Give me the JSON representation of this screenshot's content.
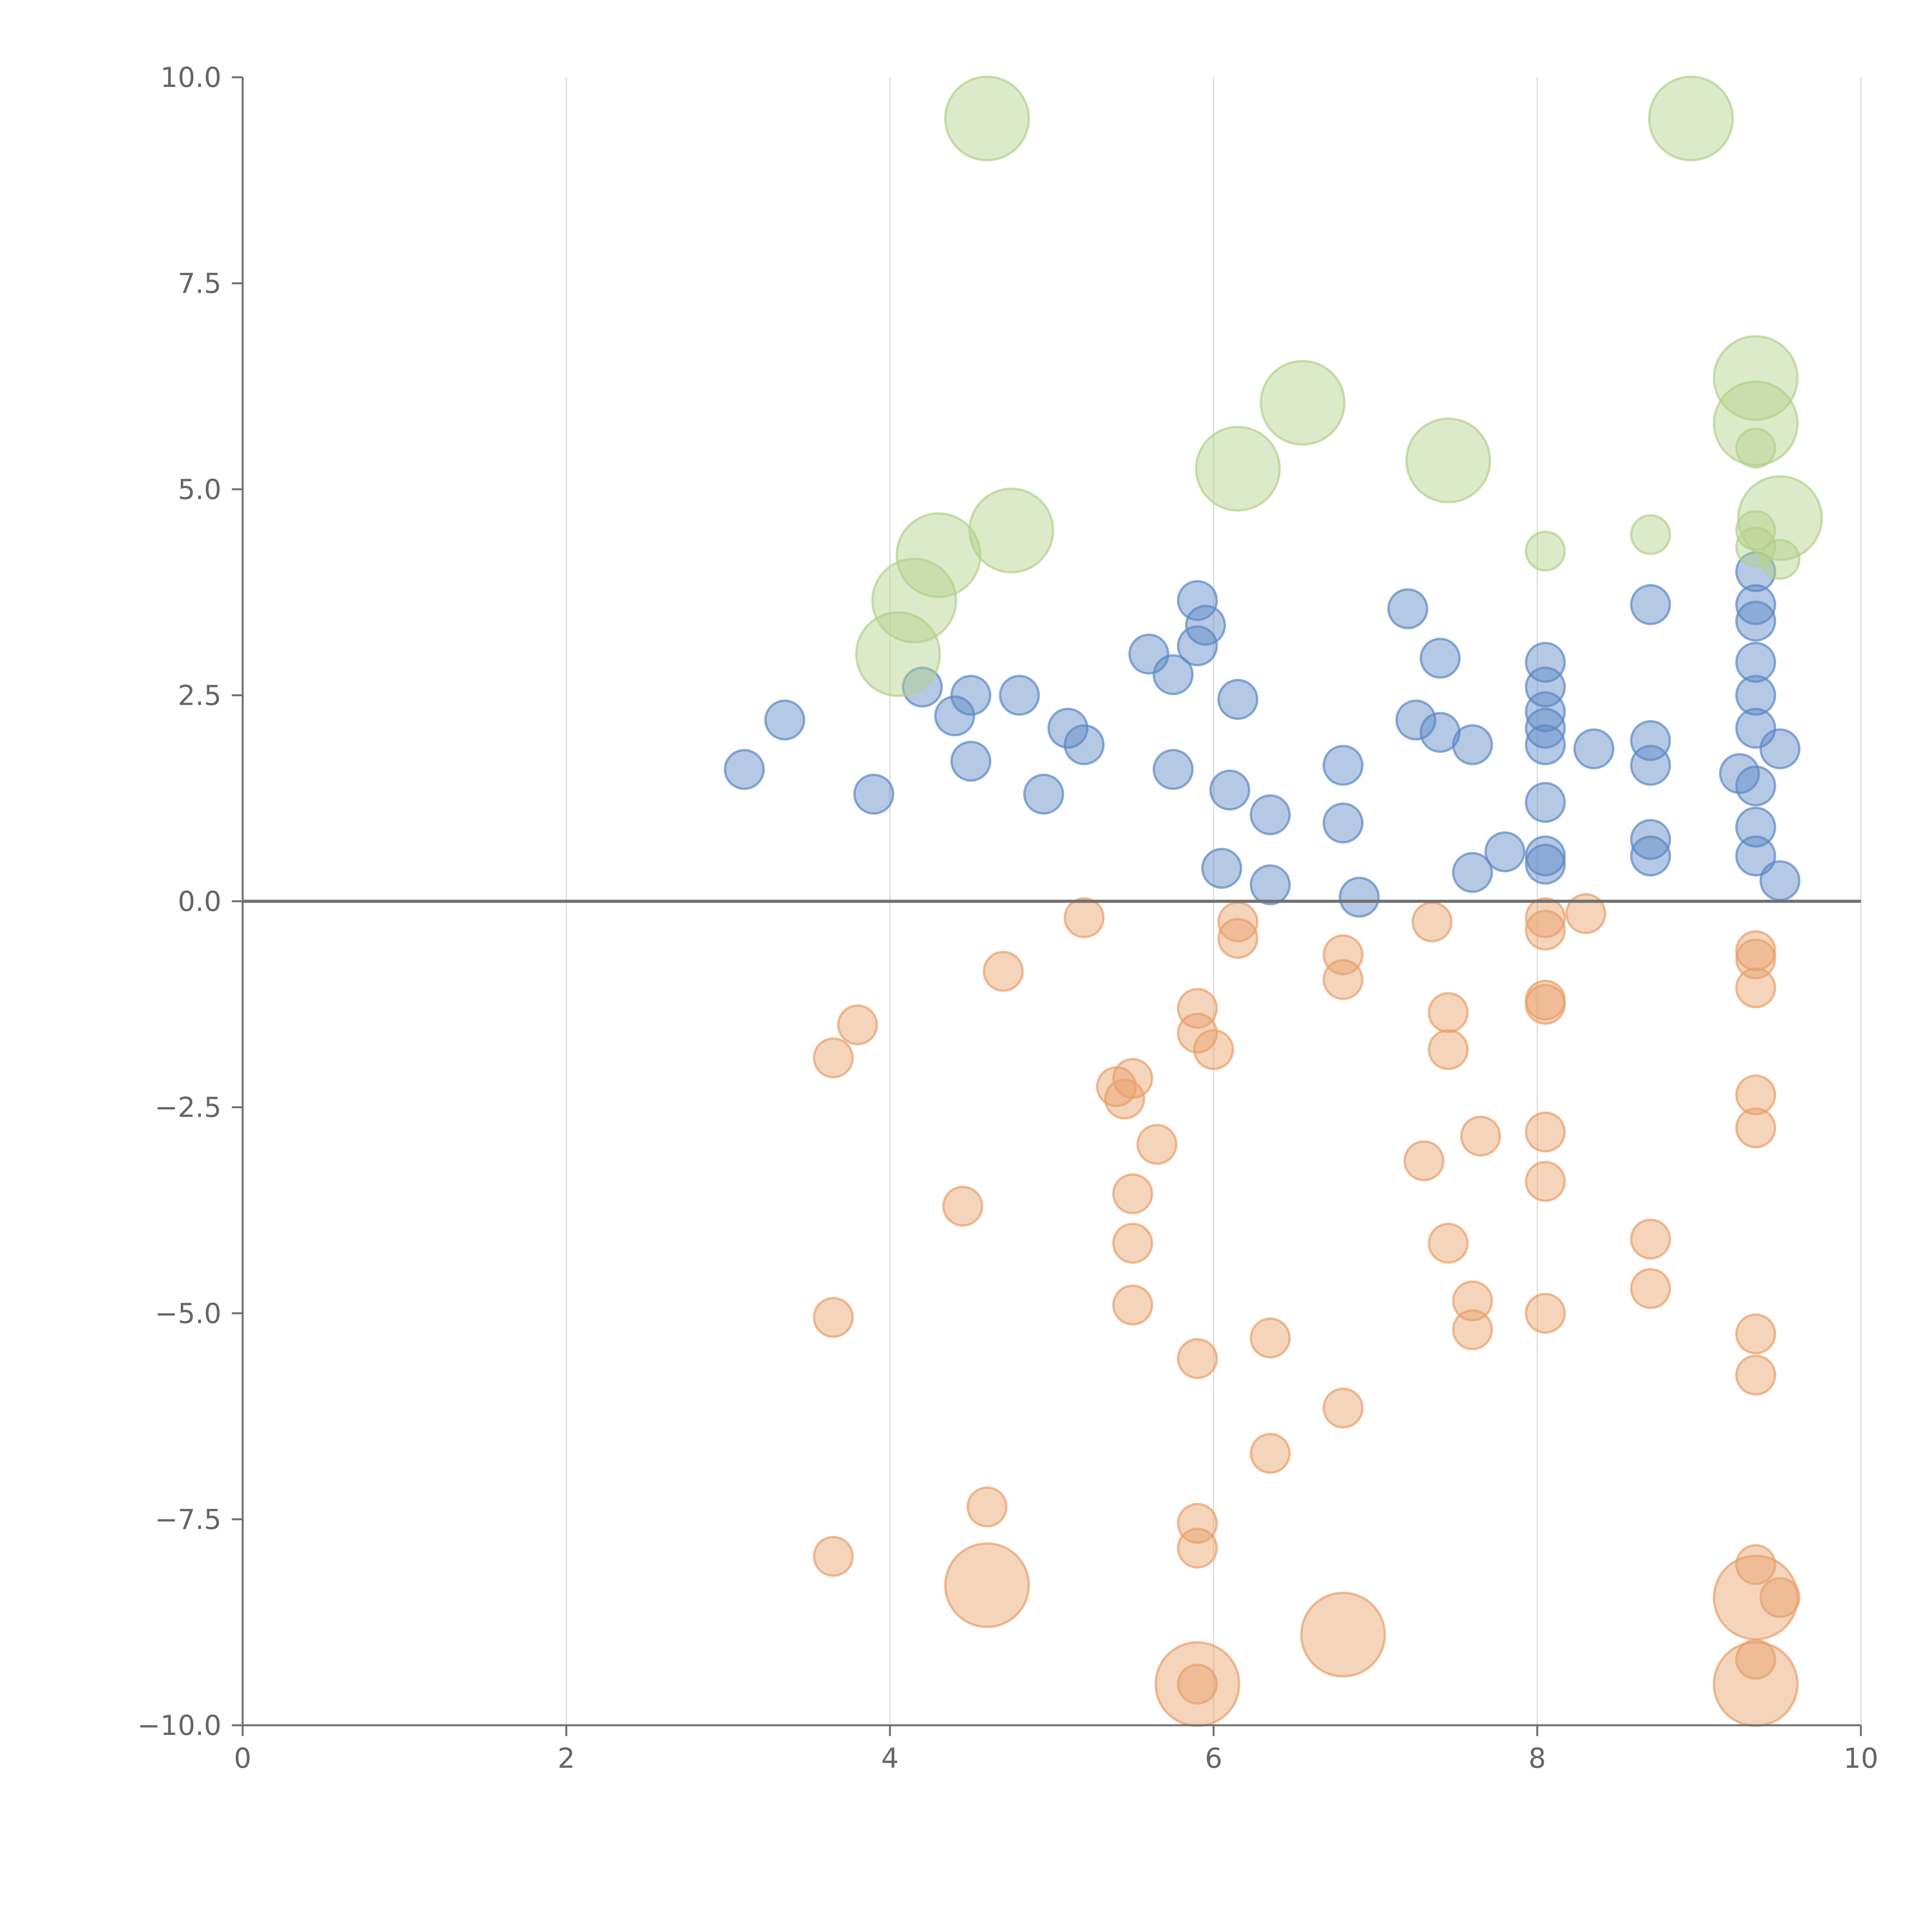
{
  "chart_data": {
    "type": "scatter",
    "title": "",
    "xlabel": "",
    "ylabel": "",
    "xlim": [
      0,
      10
    ],
    "ylim": [
      -10,
      10
    ],
    "grid": {
      "x": true,
      "y": false
    },
    "reference_line_y": 0,
    "x_ticks": [
      "0",
      "2",
      "4",
      "6",
      "8",
      "10"
    ],
    "y_ticks": [
      "10.0",
      "7.5",
      "5.0",
      "2.5",
      "0.0",
      "−2.5",
      "−5.0",
      "−7.5",
      "−10.0"
    ],
    "series": [
      {
        "color": "#5b87c5",
        "point_size": "small",
        "points": [
          [
            3.1,
            1.6
          ],
          [
            3.35,
            2.2
          ],
          [
            3.9,
            1.3
          ],
          [
            4.2,
            2.6
          ],
          [
            4.4,
            2.25
          ],
          [
            4.5,
            2.5
          ],
          [
            4.5,
            1.7
          ],
          [
            4.8,
            2.5
          ],
          [
            4.95,
            1.3
          ],
          [
            5.1,
            2.1
          ],
          [
            5.2,
            1.9
          ],
          [
            5.6,
            3.0
          ],
          [
            5.75,
            2.75
          ],
          [
            5.75,
            1.6
          ],
          [
            5.9,
            3.65
          ],
          [
            5.95,
            3.35
          ],
          [
            5.9,
            3.1
          ],
          [
            6.15,
            2.45
          ],
          [
            6.1,
            1.35
          ],
          [
            6.05,
            0.4
          ],
          [
            6.35,
            1.05
          ],
          [
            6.35,
            0.2
          ],
          [
            6.8,
            1.65
          ],
          [
            6.8,
            0.95
          ],
          [
            6.9,
            0.05
          ],
          [
            7.2,
            3.55
          ],
          [
            7.25,
            2.2
          ],
          [
            7.4,
            2.95
          ],
          [
            7.4,
            2.05
          ],
          [
            7.6,
            1.9
          ],
          [
            7.6,
            0.35
          ],
          [
            7.8,
            0.6
          ],
          [
            8.05,
            2.9
          ],
          [
            8.05,
            2.6
          ],
          [
            8.05,
            2.3
          ],
          [
            8.05,
            2.1
          ],
          [
            8.05,
            1.9
          ],
          [
            8.05,
            1.2
          ],
          [
            8.05,
            0.55
          ],
          [
            8.05,
            0.45
          ],
          [
            8.35,
            1.85
          ],
          [
            8.7,
            3.6
          ],
          [
            8.7,
            1.95
          ],
          [
            8.7,
            1.65
          ],
          [
            8.7,
            0.75
          ],
          [
            8.7,
            0.55
          ],
          [
            9.25,
            1.55
          ],
          [
            9.35,
            4.0
          ],
          [
            9.35,
            3.6
          ],
          [
            9.35,
            3.4
          ],
          [
            9.35,
            2.9
          ],
          [
            9.35,
            2.5
          ],
          [
            9.35,
            2.1
          ],
          [
            9.35,
            1.4
          ],
          [
            9.35,
            0.9
          ],
          [
            9.35,
            0.55
          ],
          [
            9.5,
            1.85
          ],
          [
            9.5,
            0.25
          ]
        ]
      },
      {
        "color": "#e8a06a",
        "point_size": "small",
        "points": [
          [
            3.65,
            -1.9
          ],
          [
            3.8,
            -1.5
          ],
          [
            3.65,
            -5.05
          ],
          [
            3.65,
            -7.95
          ],
          [
            4.45,
            -3.7
          ],
          [
            4.6,
            -7.35
          ],
          [
            4.7,
            -0.85
          ],
          [
            5.2,
            -0.2
          ],
          [
            5.4,
            -2.25
          ],
          [
            5.5,
            -2.15
          ],
          [
            5.45,
            -2.4
          ],
          [
            5.65,
            -2.95
          ],
          [
            5.5,
            -3.55
          ],
          [
            5.5,
            -4.15
          ],
          [
            5.5,
            -4.9
          ],
          [
            5.9,
            -1.3
          ],
          [
            5.9,
            -1.6
          ],
          [
            6.0,
            -1.8
          ],
          [
            5.9,
            -5.55
          ],
          [
            5.9,
            -7.55
          ],
          [
            5.9,
            -7.85
          ],
          [
            6.15,
            -0.25
          ],
          [
            6.15,
            -0.45
          ],
          [
            6.35,
            -5.3
          ],
          [
            6.35,
            -6.7
          ],
          [
            6.8,
            -0.65
          ],
          [
            6.8,
            -0.95
          ],
          [
            6.8,
            -6.15
          ],
          [
            7.35,
            -0.25
          ],
          [
            7.3,
            -3.15
          ],
          [
            7.45,
            -1.35
          ],
          [
            7.45,
            -1.8
          ],
          [
            7.45,
            -4.15
          ],
          [
            7.6,
            -4.85
          ],
          [
            7.6,
            -5.2
          ],
          [
            7.65,
            -2.85
          ],
          [
            8.05,
            -0.2
          ],
          [
            8.05,
            -0.35
          ],
          [
            8.05,
            -1.2
          ],
          [
            8.05,
            -1.25
          ],
          [
            8.05,
            -2.8
          ],
          [
            8.05,
            -3.4
          ],
          [
            8.05,
            -5.0
          ],
          [
            8.3,
            -0.15
          ],
          [
            8.7,
            -4.1
          ],
          [
            8.7,
            -4.7
          ],
          [
            9.35,
            -0.6
          ],
          [
            9.35,
            -0.7
          ],
          [
            9.35,
            -1.05
          ],
          [
            9.35,
            -2.35
          ],
          [
            9.35,
            -2.75
          ],
          [
            9.35,
            -5.25
          ],
          [
            9.35,
            -5.75
          ],
          [
            9.35,
            -8.05
          ],
          [
            9.35,
            -9.2
          ],
          [
            9.5,
            -8.45
          ],
          [
            5.9,
            -9.5
          ]
        ]
      },
      {
        "color": "#b3d08a",
        "point_size": "small",
        "points": [
          [
            8.05,
            4.25
          ],
          [
            8.7,
            4.45
          ],
          [
            9.35,
            4.5
          ],
          [
            9.35,
            4.3
          ],
          [
            9.35,
            5.5
          ],
          [
            9.5,
            4.15
          ]
        ]
      },
      {
        "color": "#b3d08a",
        "point_size": "large",
        "points": [
          [
            4.05,
            3.0
          ],
          [
            4.15,
            3.65
          ],
          [
            4.3,
            4.2
          ],
          [
            4.75,
            4.5
          ],
          [
            4.6,
            9.5
          ],
          [
            6.15,
            5.25
          ],
          [
            6.55,
            6.05
          ],
          [
            7.45,
            5.35
          ],
          [
            8.95,
            9.5
          ],
          [
            9.35,
            6.35
          ],
          [
            9.35,
            5.8
          ],
          [
            9.5,
            4.65
          ]
        ]
      },
      {
        "color": "#e8a06a",
        "point_size": "large",
        "points": [
          [
            4.6,
            -8.3
          ],
          [
            5.9,
            -9.5
          ],
          [
            6.8,
            -8.9
          ],
          [
            9.35,
            -8.45
          ],
          [
            9.35,
            -9.5
          ]
        ]
      }
    ]
  }
}
